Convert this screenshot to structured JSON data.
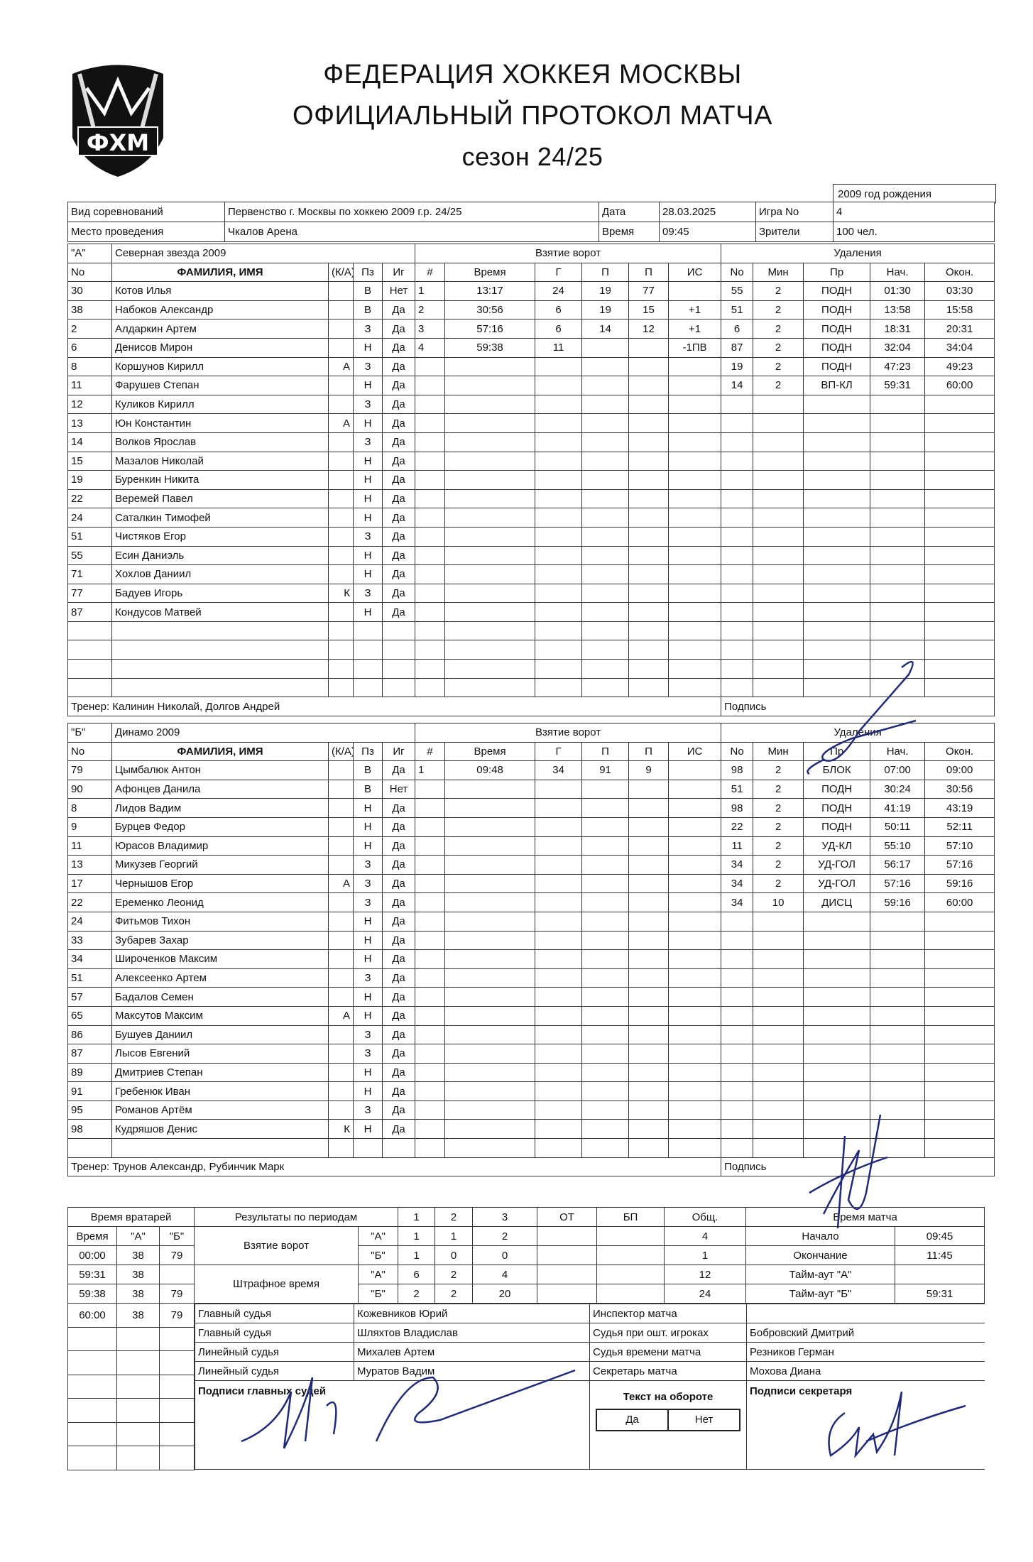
{
  "header": {
    "logo_text": "ФХМ",
    "title_line1": "ФЕДЕРАЦИЯ ХОККЕЯ МОСКВЫ",
    "title_line2": "ОФИЦИАЛЬНЫЙ ПРОТОКОЛ МАТЧА",
    "title_line3": "сезон 24/25",
    "birth_year": "2009 год рождения"
  },
  "info": {
    "competition_label": "Вид соревнований",
    "competition_value": "Первенство г. Москвы по хоккею 2009 г.р. 24/25",
    "date_label": "Дата",
    "date_value": "28.03.2025",
    "game_label": "Игра No",
    "game_value": "4",
    "venue_label": "Место проведения",
    "venue_value": "Чкалов Арена",
    "time_label": "Время",
    "time_value": "09:45",
    "spectators_label": "Зрители",
    "spectators_value": "100 чел."
  },
  "columns": {
    "no": "No",
    "name": "ФАМИЛИЯ, ИМЯ",
    "ka": "(К/А)",
    "pos": "Пз",
    "played": "Иг",
    "goals_title": "Взятие ворот",
    "g_num": "#",
    "g_time": "Время",
    "g_scorer": "Г",
    "g_a1": "П",
    "g_a2": "П",
    "g_is": "ИС",
    "pen_title": "Удаления",
    "p_no": "No",
    "p_min": "Мин",
    "p_reason": "Пр",
    "p_start": "Нач.",
    "p_end": "Окон.",
    "signature": "Подпись"
  },
  "teamA": {
    "label": "\"А\"",
    "name": "Северная звезда 2009",
    "coach": "Тренер: Калинин Николай, Долгов Андрей",
    "players": [
      {
        "no": "30",
        "name": "Котов Илья",
        "ka": "",
        "pos": "В",
        "played": "Нет"
      },
      {
        "no": "38",
        "name": "Набоков Александр",
        "ka": "",
        "pos": "В",
        "played": "Да"
      },
      {
        "no": "2",
        "name": "Алдаркин Артем",
        "ka": "",
        "pos": "З",
        "played": "Да"
      },
      {
        "no": "6",
        "name": "Денисов Мирон",
        "ka": "",
        "pos": "Н",
        "played": "Да"
      },
      {
        "no": "8",
        "name": "Коршунов Кирилл",
        "ka": "А",
        "pos": "З",
        "played": "Да"
      },
      {
        "no": "11",
        "name": "Фарушев Степан",
        "ka": "",
        "pos": "Н",
        "played": "Да"
      },
      {
        "no": "12",
        "name": "Куликов Кирилл",
        "ka": "",
        "pos": "З",
        "played": "Да"
      },
      {
        "no": "13",
        "name": "Юн Константин",
        "ka": "А",
        "pos": "Н",
        "played": "Да"
      },
      {
        "no": "14",
        "name": "Волков Ярослав",
        "ka": "",
        "pos": "З",
        "played": "Да"
      },
      {
        "no": "15",
        "name": "Мазалов Николай",
        "ka": "",
        "pos": "Н",
        "played": "Да"
      },
      {
        "no": "19",
        "name": "Буренкин Никита",
        "ka": "",
        "pos": "Н",
        "played": "Да"
      },
      {
        "no": "22",
        "name": "Веремей Павел",
        "ka": "",
        "pos": "Н",
        "played": "Да"
      },
      {
        "no": "24",
        "name": "Саталкин Тимофей",
        "ka": "",
        "pos": "Н",
        "played": "Да"
      },
      {
        "no": "51",
        "name": "Чистяков Егор",
        "ka": "",
        "pos": "З",
        "played": "Да"
      },
      {
        "no": "55",
        "name": "Есин Даниэль",
        "ka": "",
        "pos": "Н",
        "played": "Да"
      },
      {
        "no": "71",
        "name": "Хохлов Даниил",
        "ka": "",
        "pos": "Н",
        "played": "Да"
      },
      {
        "no": "77",
        "name": "Бадуев Игорь",
        "ka": "К",
        "pos": "З",
        "played": "Да"
      },
      {
        "no": "87",
        "name": "Кондусов Матвей",
        "ka": "",
        "pos": "Н",
        "played": "Да"
      }
    ],
    "goals": [
      {
        "num": "1",
        "time": "13:17",
        "scorer": "24",
        "a1": "19",
        "a2": "77",
        "is": ""
      },
      {
        "num": "2",
        "time": "30:56",
        "scorer": "6",
        "a1": "19",
        "a2": "15",
        "is": "+1"
      },
      {
        "num": "3",
        "time": "57:16",
        "scorer": "6",
        "a1": "14",
        "a2": "12",
        "is": "+1"
      },
      {
        "num": "4",
        "time": "59:38",
        "scorer": "11",
        "a1": "",
        "a2": "",
        "is": "-1ПВ"
      }
    ],
    "penalties": [
      {
        "no": "55",
        "min": "2",
        "reason": "ПОДН",
        "start": "01:30",
        "end": "03:30"
      },
      {
        "no": "51",
        "min": "2",
        "reason": "ПОДН",
        "start": "13:58",
        "end": "15:58"
      },
      {
        "no": "6",
        "min": "2",
        "reason": "ПОДН",
        "start": "18:31",
        "end": "20:31"
      },
      {
        "no": "87",
        "min": "2",
        "reason": "ПОДН",
        "start": "32:04",
        "end": "34:04"
      },
      {
        "no": "19",
        "min": "2",
        "reason": "ПОДН",
        "start": "47:23",
        "end": "49:23"
      },
      {
        "no": "14",
        "min": "2",
        "reason": "ВП-КЛ",
        "start": "59:31",
        "end": "60:00"
      }
    ]
  },
  "teamB": {
    "label": "\"Б\"",
    "name": "Динамо 2009",
    "coach": "Тренер: Трунов Александр, Рубинчик Марк",
    "players": [
      {
        "no": "79",
        "name": "Цымбалюк Антон",
        "ka": "",
        "pos": "В",
        "played": "Да"
      },
      {
        "no": "90",
        "name": "Афонцев Данила",
        "ka": "",
        "pos": "В",
        "played": "Нет"
      },
      {
        "no": "8",
        "name": "Лидов Вадим",
        "ka": "",
        "pos": "Н",
        "played": "Да"
      },
      {
        "no": "9",
        "name": "Бурцев Федор",
        "ka": "",
        "pos": "Н",
        "played": "Да"
      },
      {
        "no": "11",
        "name": "Юрасов Владимир",
        "ka": "",
        "pos": "Н",
        "played": "Да"
      },
      {
        "no": "13",
        "name": "Микузев Георгий",
        "ka": "",
        "pos": "З",
        "played": "Да"
      },
      {
        "no": "17",
        "name": "Чернышов Егор",
        "ka": "А",
        "pos": "З",
        "played": "Да"
      },
      {
        "no": "22",
        "name": "Еременко Леонид",
        "ka": "",
        "pos": "З",
        "played": "Да"
      },
      {
        "no": "24",
        "name": "Фитьмов Тихон",
        "ka": "",
        "pos": "Н",
        "played": "Да"
      },
      {
        "no": "33",
        "name": "Зубарев Захар",
        "ka": "",
        "pos": "Н",
        "played": "Да"
      },
      {
        "no": "34",
        "name": "Широченков Максим",
        "ka": "",
        "pos": "Н",
        "played": "Да"
      },
      {
        "no": "51",
        "name": "Алексеенко Артем",
        "ka": "",
        "pos": "З",
        "played": "Да"
      },
      {
        "no": "57",
        "name": "Бадалов Семен",
        "ka": "",
        "pos": "Н",
        "played": "Да"
      },
      {
        "no": "65",
        "name": "Максутов Максим",
        "ka": "А",
        "pos": "Н",
        "played": "Да"
      },
      {
        "no": "86",
        "name": "Бушуев Даниил",
        "ka": "",
        "pos": "З",
        "played": "Да"
      },
      {
        "no": "87",
        "name": "Лысов Евгений",
        "ka": "",
        "pos": "З",
        "played": "Да"
      },
      {
        "no": "89",
        "name": "Дмитриев Степан",
        "ka": "",
        "pos": "Н",
        "played": "Да"
      },
      {
        "no": "91",
        "name": "Гребенюк Иван",
        "ka": "",
        "pos": "Н",
        "played": "Да"
      },
      {
        "no": "95",
        "name": "Романов Артём",
        "ka": "",
        "pos": "З",
        "played": "Да"
      },
      {
        "no": "98",
        "name": "Кудряшов Денис",
        "ka": "К",
        "pos": "Н",
        "played": "Да"
      }
    ],
    "goals": [
      {
        "num": "1",
        "time": "09:48",
        "scorer": "34",
        "a1": "91",
        "a2": "9",
        "is": ""
      }
    ],
    "penalties": [
      {
        "no": "98",
        "min": "2",
        "reason": "БЛОК",
        "start": "07:00",
        "end": "09:00"
      },
      {
        "no": "51",
        "min": "2",
        "reason": "ПОДН",
        "start": "30:24",
        "end": "30:56"
      },
      {
        "no": "98",
        "min": "2",
        "reason": "ПОДН",
        "start": "41:19",
        "end": "43:19"
      },
      {
        "no": "22",
        "min": "2",
        "reason": "ПОДН",
        "start": "50:11",
        "end": "52:11"
      },
      {
        "no": "11",
        "min": "2",
        "reason": "УД-КЛ",
        "start": "55:10",
        "end": "57:10"
      },
      {
        "no": "34",
        "min": "2",
        "reason": "УД-ГОЛ",
        "start": "56:17",
        "end": "57:16"
      },
      {
        "no": "34",
        "min": "2",
        "reason": "УД-ГОЛ",
        "start": "57:16",
        "end": "59:16"
      },
      {
        "no": "34",
        "min": "10",
        "reason": "ДИСЦ",
        "start": "59:16",
        "end": "60:00"
      }
    ]
  },
  "summary": {
    "goalie_title": "Время вратарей",
    "goalie_cols": [
      "Время",
      "\"А\"",
      "\"Б\""
    ],
    "goalie_rows": [
      [
        "00:00",
        "38",
        "79"
      ],
      [
        "59:31",
        "38",
        ""
      ],
      [
        "59:38",
        "38",
        "79"
      ],
      [
        "60:00",
        "38",
        "79"
      ]
    ],
    "periods_title": "Результаты по периодам",
    "period_cols": [
      "1",
      "2",
      "3",
      "ОТ",
      "БП",
      "Общ."
    ],
    "goals_label": "Взятие ворот",
    "penalty_label": "Штрафное время",
    "team_a": "\"А\"",
    "team_b": "\"Б\"",
    "goals_a": [
      "1",
      "1",
      "2",
      "",
      "",
      "4"
    ],
    "goals_b": [
      "1",
      "0",
      "0",
      "",
      "",
      "1"
    ],
    "pen_a": [
      "6",
      "2",
      "4",
      "",
      "",
      "12"
    ],
    "pen_b": [
      "2",
      "2",
      "20",
      "",
      "",
      "24"
    ],
    "match_time_title": "Время матча",
    "start_label": "Начало",
    "start_value": "09:45",
    "end_label": "Окончание",
    "end_value": "11:45",
    "timeout_a_label": "Тайм-аут \"А\"",
    "timeout_a_value": "",
    "timeout_b_label": "Тайм-аут \"Б\"",
    "timeout_b_value": "59:31"
  },
  "officials": [
    {
      "role": "Главный судья",
      "name": "Кожевников Юрий",
      "role2": "Инспектор матча",
      "name2": ""
    },
    {
      "role": "Главный судья",
      "name": "Шляхтов Владислав",
      "role2": "Судья при ошт. игроках",
      "name2": "Бобровский Дмитрий"
    },
    {
      "role": "Линейный судья",
      "name": "Михалев Артем",
      "role2": "Судья времени матча",
      "name2": "Резников Герман"
    },
    {
      "role": "Линейный судья",
      "name": "Муратов Вадим",
      "role2": "Секретарь матча",
      "name2": "Мохова Диана"
    }
  ],
  "signatures": {
    "referees_label": "Подписи главных судей",
    "reverse_text_label": "Текст на обороте",
    "yes": "Да",
    "no": "Нет",
    "secretary_label": "Подписи секретаря"
  },
  "colors": {
    "ink": "#111111",
    "signature": "#1f2a7a",
    "border": "#333333"
  }
}
